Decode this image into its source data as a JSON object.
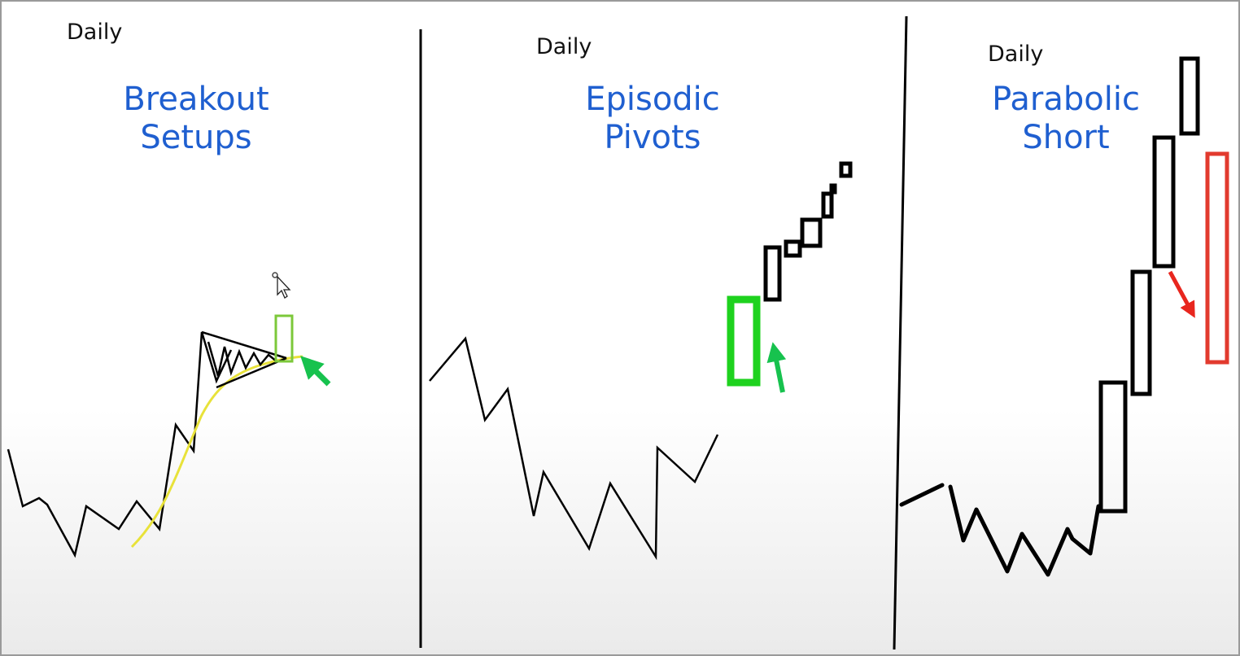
{
  "panels": [
    {
      "timeframe": "Daily",
      "title_line1": "Breakout",
      "title_line2": "Setups"
    },
    {
      "timeframe": "Daily",
      "title_line1": "Episodic",
      "title_line2": "Pivots"
    },
    {
      "timeframe": "Daily",
      "title_line1": "Parabolic",
      "title_line2": "Short"
    }
  ],
  "colors": {
    "title": "#1f5fd0",
    "ink": "#000000",
    "moving_average": "#e8e23a",
    "breakout_candle": "#7cc83a",
    "gap_candle": "#1ed21e",
    "entry_arrow": "#17c24e",
    "short_candle": "#e23a2e",
    "short_arrow": "#e8261e"
  },
  "icons": [
    "mouse-pointer-icon",
    "green-arrow-icon",
    "red-arrow-icon"
  ]
}
